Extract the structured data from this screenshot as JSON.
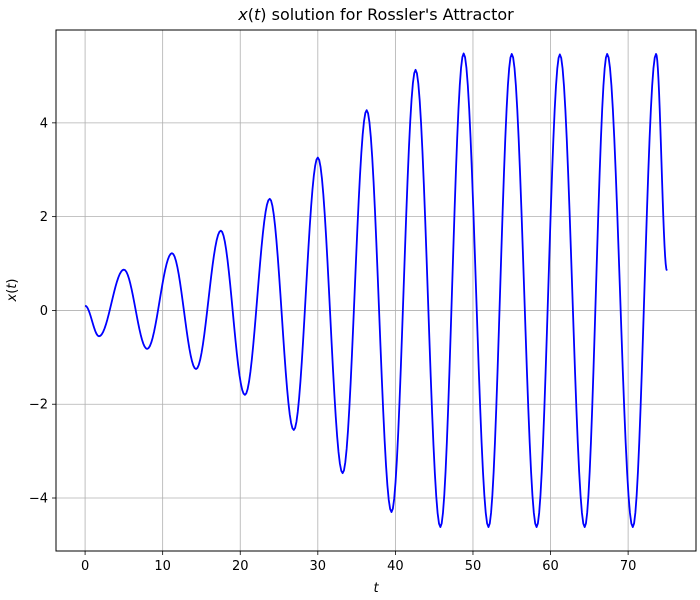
{
  "chart_data": {
    "type": "line",
    "title": "x(t) solution for Rossler's Attractor",
    "title_parts": {
      "func": "x",
      "paren_open": "(",
      "var": "t",
      "paren_close": ")",
      "rest": " solution for Rossler's Attractor"
    },
    "xlabel": "t",
    "ylabel": "x(t)",
    "ylabel_parts": {
      "func": "x",
      "paren_open": "(",
      "var": "t",
      "paren_close": ")"
    },
    "xlim": [
      -3.75,
      78.75
    ],
    "ylim": [
      -5.13,
      5.98
    ],
    "xticks": [
      0,
      10,
      20,
      30,
      40,
      50,
      60,
      70
    ],
    "xtick_labels": [
      "0",
      "10",
      "20",
      "30",
      "40",
      "50",
      "60",
      "70"
    ],
    "yticks": [
      -4,
      -2,
      0,
      2,
      4
    ],
    "ytick_labels": [
      "−4",
      "−2",
      "0",
      "2",
      "4"
    ],
    "grid": true,
    "series": [
      {
        "color": "#0000ff",
        "x": [
          0,
          1.8,
          5.0,
          8.0,
          11.2,
          14.3,
          17.5,
          20.6,
          23.8,
          26.9,
          30.0,
          33.2,
          36.3,
          39.5,
          42.6,
          45.8,
          48.8,
          52.0,
          55.0,
          58.2,
          61.2,
          64.4,
          67.3,
          70.6,
          73.6,
          75.0
        ],
        "y": [
          0.1,
          -0.55,
          0.87,
          -0.82,
          1.22,
          -1.25,
          1.7,
          -1.8,
          2.38,
          -2.55,
          3.26,
          -3.47,
          4.27,
          -4.3,
          5.13,
          -4.62,
          5.48,
          -4.62,
          5.47,
          -4.62,
          5.46,
          -4.62,
          5.47,
          -4.62,
          5.47,
          0.85
        ]
      }
    ]
  }
}
